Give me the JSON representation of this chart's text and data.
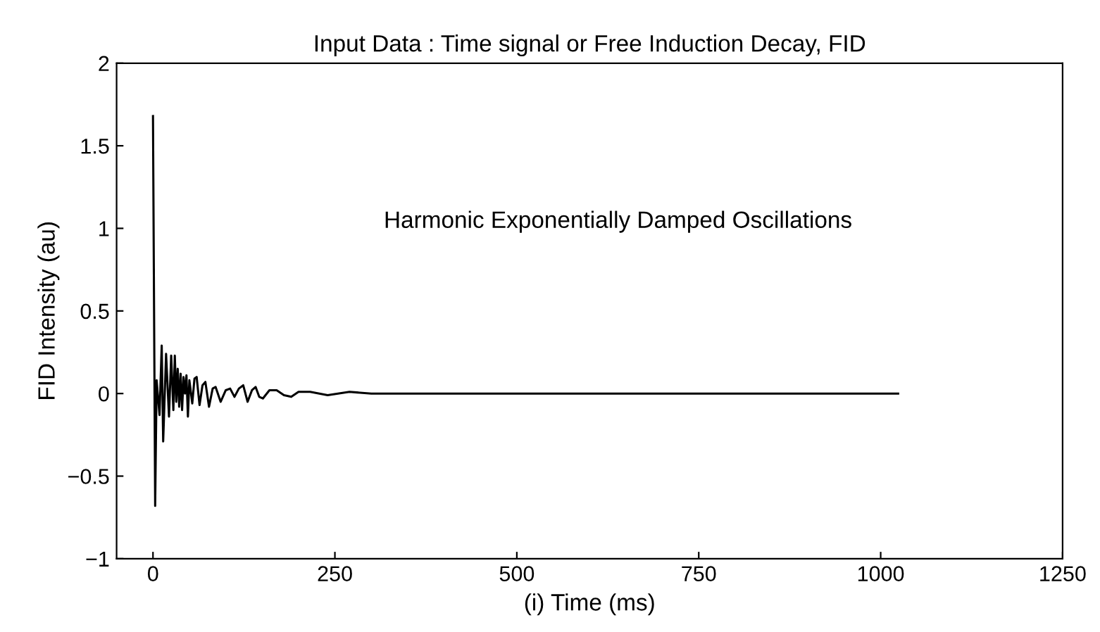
{
  "chart_data": {
    "type": "line",
    "title": "Input Data : Time signal or Free Induction Decay, FID",
    "xlabel": "(i) Time (ms)",
    "ylabel": "FID Intensity (au)",
    "annotations": [
      "Harmonic Exponentially Damped Oscillations"
    ],
    "series": [
      {
        "color": "#000000",
        "x": [
          0,
          3,
          5,
          9,
          12,
          14,
          18,
          22,
          25,
          28,
          30,
          32,
          34,
          36,
          38,
          40,
          42,
          44,
          46,
          48,
          50,
          54,
          57,
          60,
          64,
          68,
          72,
          77,
          82,
          86,
          93,
          100,
          106,
          112,
          118,
          124,
          130,
          136,
          141,
          146,
          151,
          160,
          170,
          180,
          190,
          200,
          216,
          240,
          270,
          300,
          1024
        ],
        "values": [
          1.68,
          -0.68,
          0.08,
          -0.13,
          0.29,
          -0.29,
          0.24,
          -0.14,
          0.23,
          -0.1,
          0.23,
          -0.05,
          0.15,
          -0.08,
          0.12,
          -0.1,
          0.1,
          0.0,
          0.11,
          -0.14,
          0.08,
          -0.06,
          0.09,
          0.1,
          -0.07,
          0.05,
          0.07,
          -0.08,
          0.03,
          0.04,
          -0.05,
          0.02,
          0.03,
          -0.02,
          0.03,
          0.05,
          -0.05,
          0.02,
          0.04,
          -0.02,
          -0.03,
          0.02,
          0.02,
          -0.01,
          -0.02,
          0.01,
          0.01,
          -0.01,
          0.01,
          0.0,
          0.0
        ]
      }
    ],
    "xlim": [
      -50,
      1250
    ],
    "ylim": [
      -1,
      2
    ],
    "xticks": [
      0,
      250,
      500,
      750,
      1000,
      1250
    ],
    "yticks": [
      {
        "value": -1,
        "label": "−1"
      },
      {
        "value": -0.5,
        "label": "−0.5"
      },
      0,
      0.5,
      1,
      1.5,
      2
    ],
    "grid": false,
    "legend": false,
    "line_style": "solid",
    "marker": "none"
  }
}
